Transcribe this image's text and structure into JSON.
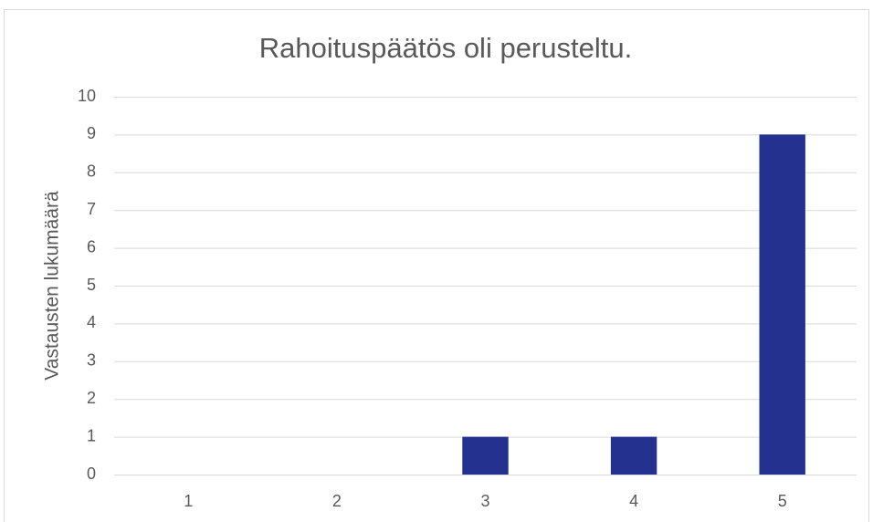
{
  "chart_data": {
    "type": "bar",
    "title": "Rahoituspäätös oli perusteltu.",
    "y_label": "Vastausten lukumäärä",
    "categories": [
      "1",
      "2",
      "3",
      "4",
      "5"
    ],
    "values": [
      0,
      0,
      1,
      1,
      9
    ],
    "color": "#25318e",
    "ylim": [
      0,
      10
    ],
    "yticks": [
      0,
      1,
      2,
      3,
      4,
      5,
      6,
      7,
      8,
      9,
      10
    ],
    "grid": true
  }
}
